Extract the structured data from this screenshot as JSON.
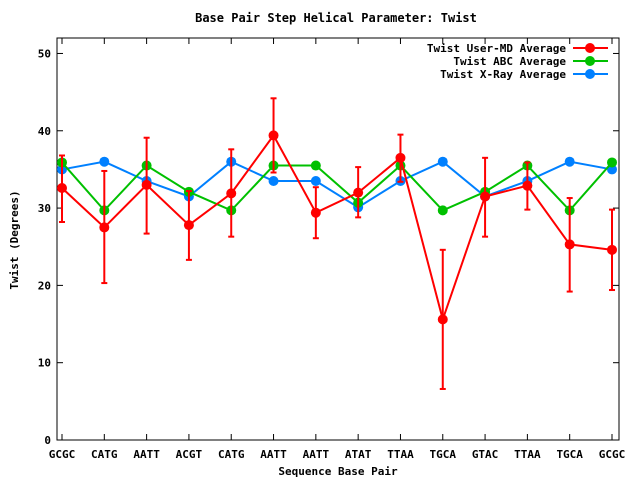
{
  "chart_data": {
    "type": "line",
    "title": "Base Pair Step Helical Parameter: Twist",
    "xlabel": "Sequence Base Pair",
    "ylabel": "Twist (Degrees)",
    "ylim": [
      0,
      52
    ],
    "yticks": [
      0,
      10,
      20,
      30,
      40,
      50
    ],
    "categories": [
      "GCGC",
      "CATG",
      "AATT",
      "ACGT",
      "CATG",
      "AATT",
      "AATT",
      "ATAT",
      "TTAA",
      "TGCA",
      "GTAC",
      "TTAA",
      "TGCA",
      "GCGC"
    ],
    "legend_position": "top-right",
    "grid": false,
    "series": [
      {
        "name": "Twist User-MD Average",
        "color": "#ff0000",
        "values": [
          32.6,
          27.5,
          33.0,
          27.8,
          31.9,
          39.4,
          29.4,
          32.0,
          36.5,
          15.6,
          31.5,
          32.9,
          25.3,
          24.6
        ],
        "error": [
          [
            28.2,
            36.8
          ],
          [
            20.3,
            34.8
          ],
          [
            26.7,
            39.1
          ],
          [
            23.3,
            32.2
          ],
          [
            26.3,
            37.6
          ],
          [
            34.6,
            44.2
          ],
          [
            26.1,
            32.7
          ],
          [
            28.8,
            35.3
          ],
          [
            33.4,
            39.5
          ],
          [
            6.6,
            24.6
          ],
          [
            26.3,
            36.5
          ],
          [
            29.8,
            35.9
          ],
          [
            19.2,
            31.3
          ],
          [
            19.4,
            29.8
          ]
        ]
      },
      {
        "name": "Twist ABC Average",
        "color": "#00c000",
        "values": [
          35.9,
          29.7,
          35.5,
          32.1,
          29.7,
          35.5,
          35.5,
          30.7,
          35.5,
          29.7,
          32.1,
          35.5,
          29.7,
          35.9
        ]
      },
      {
        "name": "Twist X-Ray Average",
        "color": "#0080ff",
        "values": [
          35.0,
          36.0,
          33.5,
          31.5,
          36.0,
          33.5,
          33.5,
          30.1,
          33.5,
          36.0,
          31.5,
          33.5,
          36.0,
          35.0
        ]
      }
    ]
  }
}
